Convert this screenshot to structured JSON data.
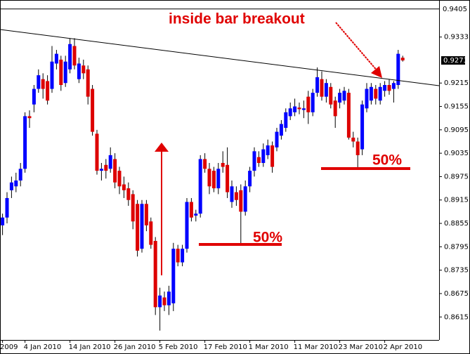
{
  "chart_data": {
    "type": "candlestick",
    "categories": [
      "2009",
      null,
      null,
      null,
      null,
      "4 Jan 2010",
      null,
      null,
      null,
      null,
      null,
      null,
      null,
      null,
      null,
      "14 Jan 2010",
      null,
      null,
      null,
      null,
      null,
      null,
      null,
      null,
      null,
      "26 Jan 2010",
      null,
      null,
      null,
      null,
      null,
      null,
      null,
      null,
      null,
      "5 Feb 2010",
      null,
      null,
      null,
      null,
      null,
      null,
      null,
      null,
      null,
      "17 Feb 2010",
      null,
      null,
      null,
      null,
      null,
      null,
      null,
      null,
      null,
      "1 Mar 2010",
      null,
      null,
      null,
      null,
      null,
      null,
      null,
      null,
      null,
      "11 Mar 2010",
      null,
      null,
      null,
      null,
      null,
      null,
      null,
      null,
      null,
      "23 Mar 2010",
      null,
      null,
      null,
      null,
      null,
      null,
      null,
      null,
      null,
      "2 Apr 2010",
      null,
      null,
      null,
      null
    ],
    "open": [
      0.885,
      0.887,
      0.894,
      0.895,
      0.8965,
      0.8995,
      0.913,
      0.916,
      0.92,
      0.9225,
      0.922,
      0.92,
      0.9265,
      0.9275,
      0.9215,
      0.925,
      0.931,
      0.9225,
      0.926,
      0.925,
      0.92,
      0.9085,
      0.899,
      0.9005,
      0.8995,
      0.902,
      0.899,
      0.8955,
      0.8945,
      0.893,
      0.8905,
      0.879,
      0.8905,
      0.886,
      0.881,
      0.864,
      0.8665,
      0.8645,
      0.865,
      0.879,
      0.8755,
      0.879,
      0.891,
      0.8875,
      0.888,
      0.902,
      0.8995,
      0.899,
      0.8945,
      0.901,
      0.9005,
      0.891,
      0.8935,
      0.894,
      0.8885,
      0.895,
      0.899,
      0.9025,
      0.901,
      0.903,
      0.9055,
      0.905,
      0.908,
      0.91,
      0.913,
      0.914,
      0.9152,
      0.9146,
      0.918,
      0.914,
      0.919,
      0.9225,
      0.918,
      0.9205,
      0.917,
      0.9165,
      0.917,
      0.919,
      0.9075,
      0.9065,
      0.9045,
      0.915,
      0.917,
      0.92,
      0.917,
      0.9195,
      0.921,
      0.92,
      0.921,
      0.928
    ],
    "high": [
      0.888,
      0.8935,
      0.8975,
      0.8985,
      0.901,
      0.914,
      0.9145,
      0.921,
      0.925,
      0.924,
      0.9235,
      0.931,
      0.93,
      0.9285,
      0.9285,
      0.933,
      0.933,
      0.928,
      0.9275,
      0.926,
      0.921,
      0.9095,
      0.901,
      0.902,
      0.905,
      0.9035,
      0.9,
      0.8975,
      0.896,
      0.894,
      0.8915,
      0.8915,
      0.8915,
      0.887,
      0.882,
      0.869,
      0.868,
      0.8695,
      0.8805,
      0.88,
      0.88,
      0.892,
      0.892,
      0.889,
      0.903,
      0.9035,
      0.901,
      0.9,
      0.901,
      0.904,
      0.905,
      0.8965,
      0.895,
      0.8955,
      0.8965,
      0.9,
      0.905,
      0.904,
      0.906,
      0.907,
      0.9065,
      0.91,
      0.912,
      0.915,
      0.9165,
      0.9175,
      0.9165,
      0.917,
      0.9195,
      0.92,
      0.9255,
      0.9245,
      0.9225,
      0.9215,
      0.918,
      0.92,
      0.9205,
      0.92,
      0.909,
      0.9075,
      0.917,
      0.9215,
      0.9215,
      0.921,
      0.9215,
      0.922,
      0.9225,
      0.922,
      0.93,
      0.9285
    ],
    "low": [
      0.8825,
      0.8855,
      0.892,
      0.8935,
      0.895,
      0.8985,
      0.91,
      0.914,
      0.919,
      0.9175,
      0.916,
      0.919,
      0.925,
      0.9195,
      0.9205,
      0.924,
      0.925,
      0.9215,
      0.9225,
      0.916,
      0.908,
      0.898,
      0.8965,
      0.897,
      0.8985,
      0.8945,
      0.893,
      0.892,
      0.89,
      0.884,
      0.877,
      0.878,
      0.8835,
      0.879,
      0.862,
      0.858,
      0.863,
      0.862,
      0.863,
      0.8745,
      0.8745,
      0.878,
      0.886,
      0.886,
      0.887,
      0.8985,
      0.893,
      0.8935,
      0.893,
      0.8985,
      0.892,
      0.8895,
      0.89,
      0.88,
      0.8875,
      0.8935,
      0.8975,
      0.9,
      0.9,
      0.902,
      0.8985,
      0.904,
      0.907,
      0.909,
      0.912,
      0.913,
      0.9135,
      0.9125,
      0.911,
      0.913,
      0.918,
      0.917,
      0.9165,
      0.915,
      0.91,
      0.915,
      0.916,
      0.907,
      0.905,
      0.8995,
      0.903,
      0.914,
      0.916,
      0.916,
      0.916,
      0.918,
      0.9185,
      0.9165,
      0.92,
      0.927
    ],
    "close": [
      0.887,
      0.892,
      0.896,
      0.8965,
      0.8995,
      0.913,
      0.9125,
      0.92,
      0.9235,
      0.92,
      0.917,
      0.927,
      0.929,
      0.921,
      0.927,
      0.9315,
      0.926,
      0.9265,
      0.924,
      0.918,
      0.909,
      0.899,
      0.8995,
      0.899,
      0.903,
      0.896,
      0.895,
      0.894,
      0.8915,
      0.886,
      0.8785,
      0.8905,
      0.885,
      0.88,
      0.864,
      0.867,
      0.8645,
      0.868,
      0.879,
      0.8755,
      0.879,
      0.891,
      0.887,
      0.888,
      0.902,
      0.8995,
      0.895,
      0.8945,
      0.8995,
      0.9,
      0.8935,
      0.895,
      0.8915,
      0.8885,
      0.895,
      0.899,
      0.904,
      0.901,
      0.9045,
      0.9055,
      0.9,
      0.909,
      0.911,
      0.914,
      0.915,
      0.9155,
      0.9148,
      0.915,
      0.914,
      0.919,
      0.923,
      0.918,
      0.9215,
      0.916,
      0.913,
      0.919,
      0.9195,
      0.9075,
      0.9065,
      0.903,
      0.916,
      0.92,
      0.9205,
      0.9175,
      0.9205,
      0.921,
      0.9195,
      0.9215,
      0.929,
      0.9273
    ],
    "up_color": "#0000ff",
    "down_color": "#dd0000",
    "ylim": [
      0.8556,
      0.9428
    ],
    "yticks": [
      0.9333,
      0.9215,
      0.9155,
      0.9095,
      0.9035,
      0.8975,
      0.8915,
      0.8855,
      0.8795,
      0.8735,
      0.8675,
      0.8615
    ],
    "level_line": 0.9405,
    "annotations": [
      "inside bar breakout",
      "50%",
      "50%"
    ]
  }
}
